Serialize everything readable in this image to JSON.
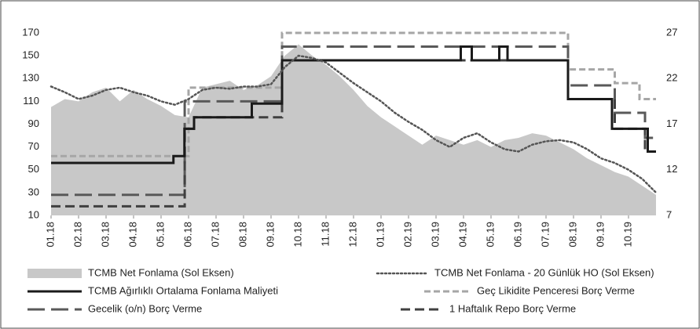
{
  "chart_data": {
    "type": "line",
    "x": [
      0,
      0.5,
      1,
      1.5,
      2,
      2.5,
      3,
      3.5,
      4,
      4.5,
      5,
      5.5,
      6,
      6.5,
      7,
      7.5,
      8,
      8.5,
      9,
      9.5,
      10,
      10.5,
      11,
      11.5,
      12,
      12.5,
      13,
      13.5,
      14,
      14.5,
      15,
      15.5,
      16,
      16.5,
      17,
      17.5,
      18,
      18.5,
      19,
      19.5,
      20,
      20.5,
      21,
      21.5,
      22
    ],
    "xlim": [
      0,
      22
    ],
    "xticks": [
      {
        "value": 0,
        "label": "01.18"
      },
      {
        "value": 1,
        "label": "02.18"
      },
      {
        "value": 2,
        "label": "03.18"
      },
      {
        "value": 3,
        "label": "04.18"
      },
      {
        "value": 4,
        "label": "05.18"
      },
      {
        "value": 5,
        "label": "06.18"
      },
      {
        "value": 6,
        "label": "07.18"
      },
      {
        "value": 7,
        "label": "08.18"
      },
      {
        "value": 8,
        "label": "09.18"
      },
      {
        "value": 9,
        "label": "10.18"
      },
      {
        "value": 10,
        "label": "11.18"
      },
      {
        "value": 11,
        "label": "12.18"
      },
      {
        "value": 12,
        "label": "01.19"
      },
      {
        "value": 13,
        "label": "02.19"
      },
      {
        "value": 14,
        "label": "03.19"
      },
      {
        "value": 15,
        "label": "04.19"
      },
      {
        "value": 16,
        "label": "05.19"
      },
      {
        "value": 17,
        "label": "06.19"
      },
      {
        "value": 18,
        "label": "07.19"
      },
      {
        "value": 19,
        "label": "08.19"
      },
      {
        "value": 20,
        "label": "09.19"
      },
      {
        "value": 21,
        "label": "10.19"
      }
    ],
    "ylim": [
      10,
      170
    ],
    "yticks": [
      10,
      30,
      50,
      70,
      90,
      110,
      130,
      150,
      170
    ],
    "y2lim": [
      7,
      27
    ],
    "y2ticks": [
      7,
      12,
      17,
      22,
      27
    ],
    "series": [
      {
        "name": "TCMB Net Fonlama (Sol Eksen)",
        "style": "area",
        "color": "#c8c8c8",
        "values": [
          105,
          112,
          110,
          118,
          122,
          110,
          120,
          112,
          106,
          98,
          96,
          122,
          125,
          128,
          120,
          124,
          132,
          150,
          160,
          150,
          142,
          132,
          120,
          106,
          96,
          88,
          80,
          72,
          80,
          76,
          72,
          76,
          70,
          76,
          78,
          82,
          80,
          74,
          68,
          60,
          54,
          48,
          44,
          36,
          28
        ]
      },
      {
        "name": "TCMB Net Fonlama - 20 Günlük HO (Sol Eksen)",
        "style": "dotted",
        "color": "#555555",
        "values": [
          123,
          118,
          112,
          115,
          120,
          122,
          118,
          115,
          110,
          107,
          112,
          120,
          122,
          121,
          123,
          123,
          125,
          140,
          150,
          148,
          144,
          135,
          126,
          118,
          110,
          100,
          92,
          85,
          76,
          70,
          78,
          82,
          74,
          68,
          66,
          72,
          75,
          76,
          74,
          68,
          60,
          56,
          50,
          42,
          30
        ]
      },
      {
        "name": "TCMB Ağırlıklı Ortalama Fonlama Maliyeti",
        "style": "solid",
        "color": "#1a1a1a",
        "axis": "y2",
        "x": [
          0,
          4.45,
          4.85,
          5.2,
          7.3,
          8.4,
          14.9,
          15.3,
          16.3,
          16.6,
          18.8,
          20.4,
          21.7,
          22
        ],
        "values": [
          12.75,
          13.5,
          16.5,
          17.75,
          19.25,
          24,
          25.5,
          24,
          25.5,
          24,
          19.75,
          16.5,
          14,
          14
        ]
      },
      {
        "name": "Geç Likidite Penceresi Borç Verme",
        "style": "dashed-light",
        "color": "#a6a6a6",
        "axis": "y2",
        "x": [
          0,
          5,
          8.4,
          18.8,
          20.5,
          21.4,
          22
        ],
        "values": [
          13.5,
          21,
          27,
          23,
          21.5,
          19.75,
          19.75
        ]
      },
      {
        "name": "Gecelik (o/n) Borç Verme",
        "style": "dashed-long",
        "color": "#595959",
        "axis": "y2",
        "x": [
          0,
          4.86,
          8.4,
          18.8,
          20.5,
          21.6,
          22
        ],
        "values": [
          9.25,
          19.5,
          25.5,
          21.25,
          18.25,
          15.5,
          15.5
        ]
      },
      {
        "name": "1 Haftalık Repo Borç Verme",
        "style": "dashed-short",
        "color": "#404040",
        "axis": "y2",
        "x": [
          0,
          4.86,
          5.2,
          8.4,
          18.8,
          20.5,
          21.6,
          22
        ],
        "values": [
          8,
          16.5,
          17.75,
          24,
          19.75,
          16.5,
          14,
          14
        ]
      }
    ]
  }
}
